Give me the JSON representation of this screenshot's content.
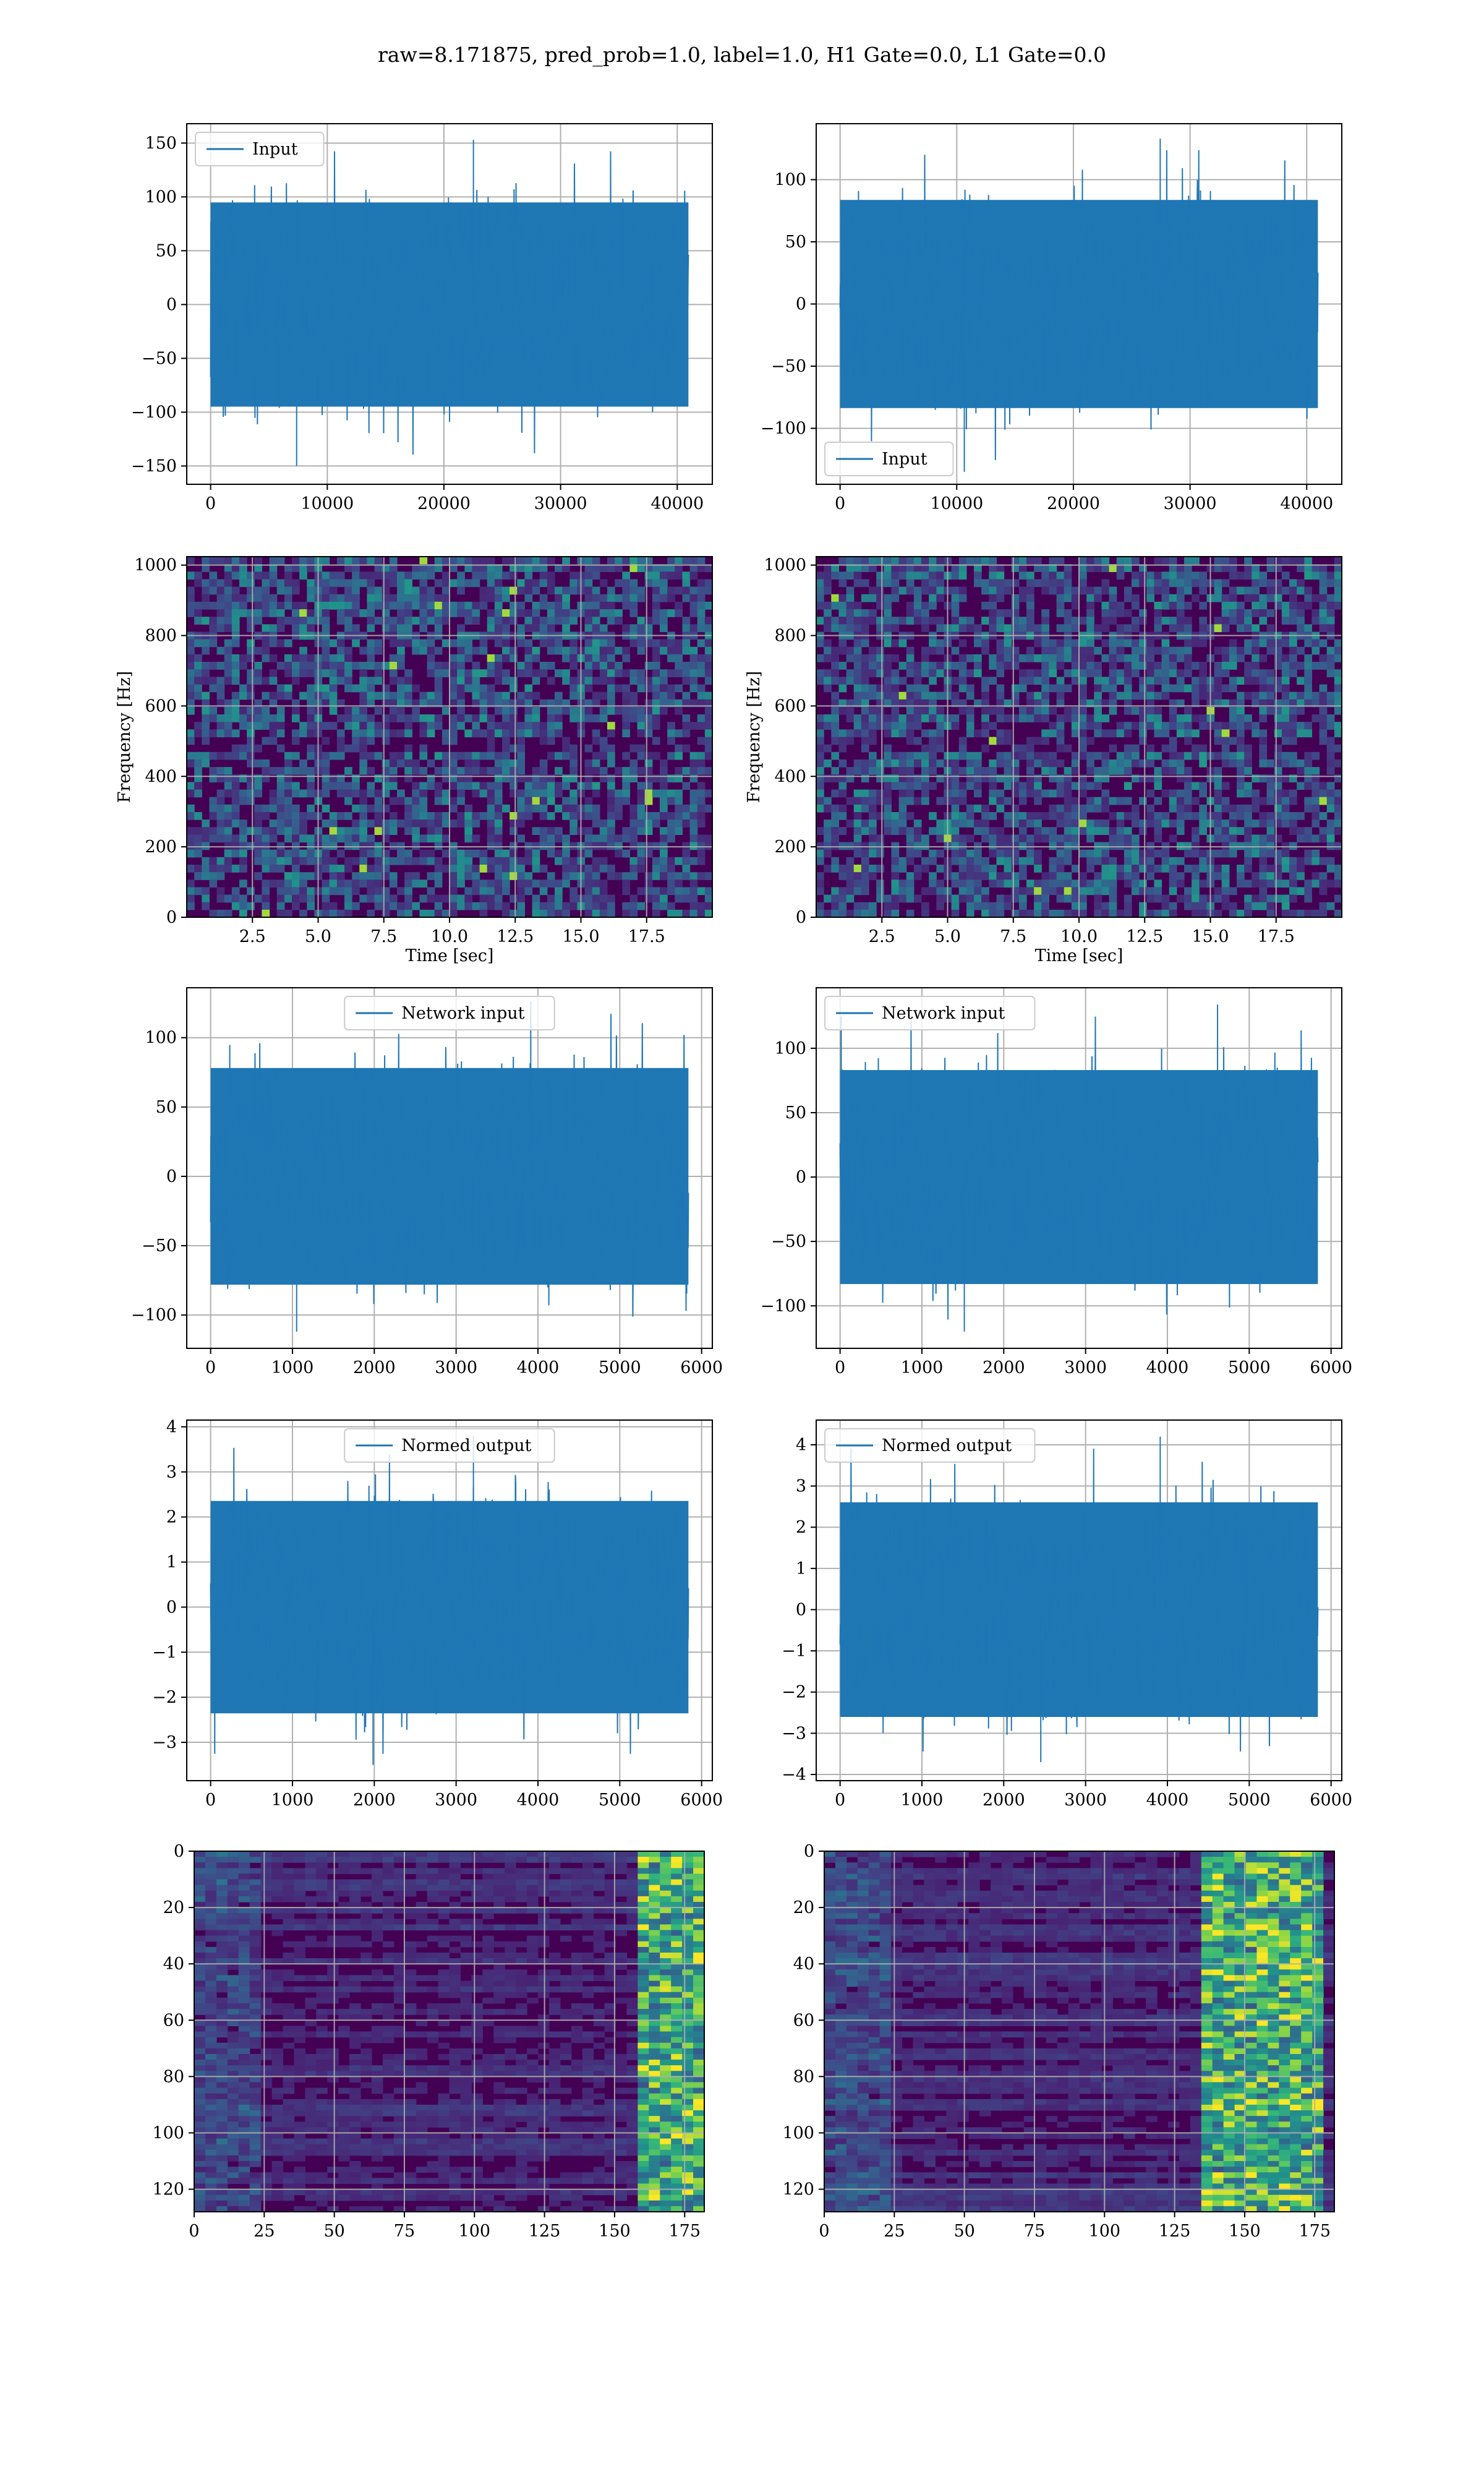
{
  "figure": {
    "suptitle": "raw=8.171875, pred_prob=1.0, label=1.0, H1 Gate=0.0, L1 Gate=0.0",
    "colors": {
      "line": "#1f77b4",
      "grid": "#b0b0b0",
      "viridis_dark": "#440154",
      "viridis_teal": "#21918c",
      "viridis_green": "#5ec962",
      "viridis_yellow": "#fde725"
    }
  },
  "chart_data": [
    {
      "id": "h1-input",
      "type": "line",
      "legend": "Input",
      "legend_loc": "upper-left",
      "series": [
        {
          "name": "Input",
          "x_range": [
            0,
            40959
          ],
          "envelope": {
            "min": -150,
            "max": 153
          }
        }
      ],
      "xlim": [
        -2048,
        43007
      ],
      "ylim": [
        -167,
        168
      ],
      "xticks": [
        0,
        10000,
        20000,
        30000,
        40000
      ],
      "xtick_labels": [
        "0",
        "10000",
        "20000",
        "30000",
        "40000"
      ],
      "yticks": [
        -150,
        -100,
        -50,
        0,
        50,
        100,
        150
      ],
      "ytick_labels": [
        "−150",
        "−100",
        "−50",
        "0",
        "50",
        "100",
        "150"
      ],
      "grid": true
    },
    {
      "id": "l1-input",
      "type": "line",
      "legend": "Input",
      "legend_loc": "lower-left",
      "series": [
        {
          "name": "Input",
          "x_range": [
            0,
            40959
          ],
          "envelope": {
            "min": -135,
            "max": 133
          }
        }
      ],
      "xlim": [
        -2048,
        43007
      ],
      "ylim": [
        -145,
        145
      ],
      "xticks": [
        0,
        10000,
        20000,
        30000,
        40000
      ],
      "xtick_labels": [
        "0",
        "10000",
        "20000",
        "30000",
        "40000"
      ],
      "yticks": [
        -100,
        -50,
        0,
        50,
        100
      ],
      "ytick_labels": [
        "−100",
        "−50",
        "0",
        "50",
        "100"
      ],
      "grid": true
    },
    {
      "id": "h1-spectrogram",
      "type": "heatmap",
      "colormap": "viridis",
      "xlabel": "Time [sec]",
      "ylabel": "Frequency [Hz]",
      "xlim": [
        0,
        20
      ],
      "ylim": [
        0,
        1024
      ],
      "xticks": [
        2.5,
        5.0,
        7.5,
        10.0,
        12.5,
        15.0,
        17.5
      ],
      "xtick_labels": [
        "2.5",
        "5.0",
        "7.5",
        "10.0",
        "12.5",
        "15.0",
        "17.5"
      ],
      "yticks": [
        0,
        200,
        400,
        600,
        800,
        1000
      ],
      "ytick_labels": [
        "0",
        "200",
        "400",
        "600",
        "800",
        "1000"
      ],
      "grid": true
    },
    {
      "id": "l1-spectrogram",
      "type": "heatmap",
      "colormap": "viridis",
      "xlabel": "Time [sec]",
      "ylabel": "Frequency [Hz]",
      "xlim": [
        0,
        20
      ],
      "ylim": [
        0,
        1024
      ],
      "xticks": [
        2.5,
        5.0,
        7.5,
        10.0,
        12.5,
        15.0,
        17.5
      ],
      "xtick_labels": [
        "2.5",
        "5.0",
        "7.5",
        "10.0",
        "12.5",
        "15.0",
        "17.5"
      ],
      "yticks": [
        0,
        200,
        400,
        600,
        800,
        1000
      ],
      "ytick_labels": [
        "0",
        "200",
        "400",
        "600",
        "800",
        "1000"
      ],
      "grid": true
    },
    {
      "id": "h1-network-input",
      "type": "line",
      "legend": "Network input",
      "legend_loc": "upper-center",
      "series": [
        {
          "name": "Network input",
          "x_range": [
            0,
            5839
          ],
          "envelope": {
            "min": -112,
            "max": 126
          }
        }
      ],
      "xlim": [
        -292,
        6131
      ],
      "ylim": [
        -124,
        136
      ],
      "xticks": [
        0,
        1000,
        2000,
        3000,
        4000,
        5000,
        6000
      ],
      "xtick_labels": [
        "0",
        "1000",
        "2000",
        "3000",
        "4000",
        "5000",
        "6000"
      ],
      "yticks": [
        -100,
        -50,
        0,
        50,
        100
      ],
      "ytick_labels": [
        "−100",
        "−50",
        "0",
        "50",
        "100"
      ],
      "grid": true
    },
    {
      "id": "l1-network-input",
      "type": "line",
      "legend": "Network input",
      "legend_loc": "upper-left",
      "series": [
        {
          "name": "Network input",
          "x_range": [
            0,
            5839
          ],
          "envelope": {
            "min": -120,
            "max": 134
          }
        }
      ],
      "xlim": [
        -292,
        6131
      ],
      "ylim": [
        -133,
        147
      ],
      "xticks": [
        0,
        1000,
        2000,
        3000,
        4000,
        5000,
        6000
      ],
      "xtick_labels": [
        "0",
        "1000",
        "2000",
        "3000",
        "4000",
        "5000",
        "6000"
      ],
      "yticks": [
        -100,
        -50,
        0,
        50,
        100
      ],
      "ytick_labels": [
        "−100",
        "−50",
        "0",
        "50",
        "100"
      ],
      "grid": true
    },
    {
      "id": "h1-normed-output",
      "type": "line",
      "legend": "Normed output",
      "legend_loc": "upper-center",
      "series": [
        {
          "name": "Normed output",
          "x_range": [
            0,
            5839
          ],
          "envelope": {
            "min": -3.5,
            "max": 3.8
          }
        }
      ],
      "xlim": [
        -292,
        6131
      ],
      "ylim": [
        -3.85,
        4.15
      ],
      "xticks": [
        0,
        1000,
        2000,
        3000,
        4000,
        5000,
        6000
      ],
      "xtick_labels": [
        "0",
        "1000",
        "2000",
        "3000",
        "4000",
        "5000",
        "6000"
      ],
      "yticks": [
        -3,
        -2,
        -1,
        0,
        1,
        2,
        3,
        4
      ],
      "ytick_labels": [
        "−3",
        "−2",
        "−1",
        "0",
        "1",
        "2",
        "3",
        "4"
      ],
      "grid": true
    },
    {
      "id": "l1-normed-output",
      "type": "line",
      "legend": "Normed output",
      "legend_loc": "upper-left",
      "series": [
        {
          "name": "Normed output",
          "x_range": [
            0,
            5839
          ],
          "envelope": {
            "min": -3.7,
            "max": 4.2
          }
        }
      ],
      "xlim": [
        -292,
        6131
      ],
      "ylim": [
        -4.15,
        4.6
      ],
      "xticks": [
        0,
        1000,
        2000,
        3000,
        4000,
        5000,
        6000
      ],
      "xtick_labels": [
        "0",
        "1000",
        "2000",
        "3000",
        "4000",
        "5000",
        "6000"
      ],
      "yticks": [
        -4,
        -3,
        -2,
        -1,
        0,
        1,
        2,
        3,
        4
      ],
      "ytick_labels": [
        "−4",
        "−3",
        "−2",
        "−1",
        "0",
        "1",
        "2",
        "3",
        "4"
      ],
      "grid": true
    },
    {
      "id": "h1-feature-map",
      "type": "heatmap",
      "colormap": "viridis",
      "xlim": [
        0,
        182
      ],
      "ylim": [
        128,
        0
      ],
      "xticks": [
        0,
        25,
        50,
        75,
        100,
        125,
        150,
        175
      ],
      "xtick_labels": [
        "0",
        "25",
        "50",
        "75",
        "100",
        "125",
        "150",
        "175"
      ],
      "yticks": [
        0,
        20,
        40,
        60,
        80,
        100,
        120
      ],
      "ytick_labels": [
        "0",
        "20",
        "40",
        "60",
        "80",
        "100",
        "120"
      ],
      "hot_columns": [
        160,
        182
      ],
      "grid": true
    },
    {
      "id": "l1-feature-map",
      "type": "heatmap",
      "colormap": "viridis",
      "xlim": [
        0,
        182
      ],
      "ylim": [
        128,
        0
      ],
      "xticks": [
        0,
        25,
        50,
        75,
        100,
        125,
        150,
        175
      ],
      "xtick_labels": [
        "0",
        "25",
        "50",
        "75",
        "100",
        "125",
        "150",
        "175"
      ],
      "yticks": [
        0,
        20,
        40,
        60,
        80,
        100,
        120
      ],
      "ytick_labels": [
        "0",
        "20",
        "40",
        "60",
        "80",
        "100",
        "120"
      ],
      "hot_columns": [
        135,
        180
      ],
      "grid": true
    }
  ]
}
